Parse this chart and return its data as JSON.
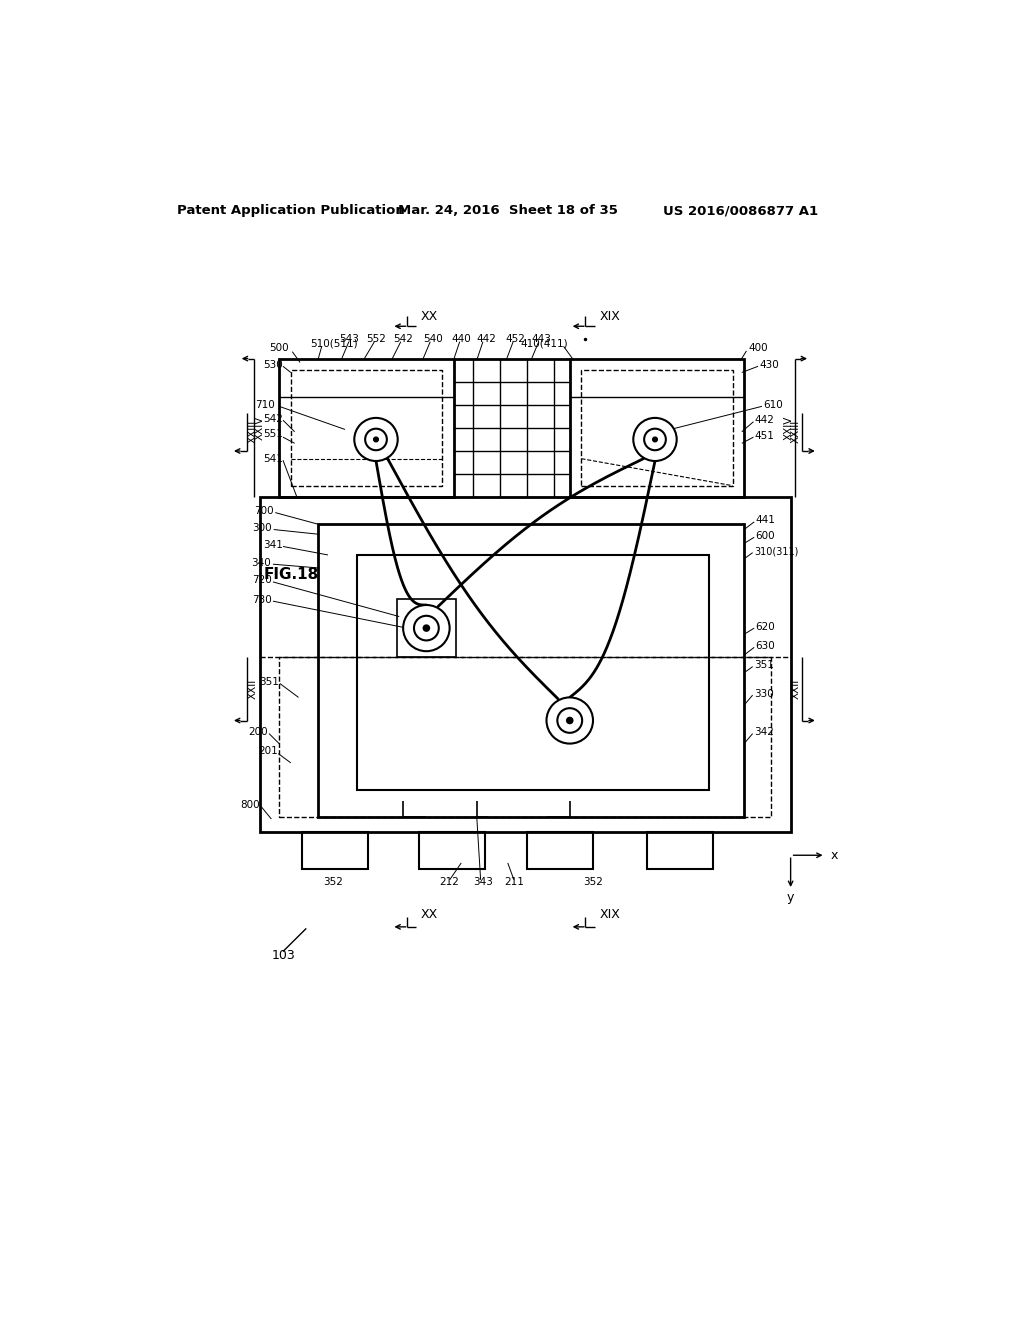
{
  "bg_color": "#ffffff",
  "title_left": "Patent Application Publication",
  "title_mid": "Mar. 24, 2016  Sheet 18 of 35",
  "title_right": "US 2016/0086877 A1",
  "fig_label": "FIG.18",
  "fig_num": "103"
}
